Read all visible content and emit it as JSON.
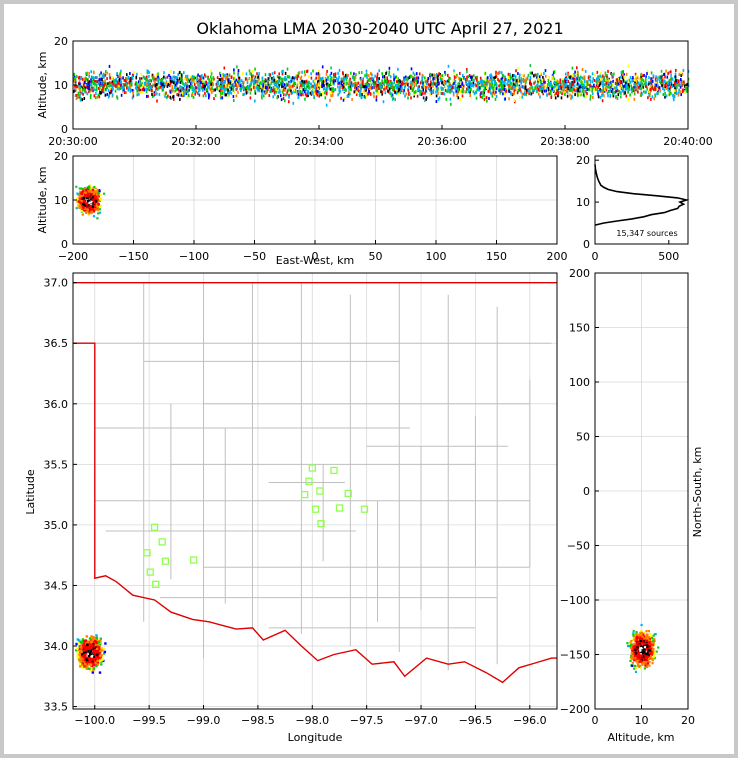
{
  "title": "Oklahoma LMA 2030-2040 UTC April 27, 2021",
  "colors": {
    "source_palette": [
      "#0000ff",
      "#00b0ff",
      "#00d000",
      "#20c040",
      "#ffff00",
      "#ff8000",
      "#ff0000",
      "#ff0000",
      "#ff0000",
      "#000000",
      "#ffffff"
    ],
    "state_border": "#e00000",
    "county_lines": "#c0c0c0",
    "station_marker": "#90ff50"
  },
  "chart_data": [
    {
      "id": "time_altitude",
      "type": "scatter",
      "xlabel": "",
      "ylabel": "Altitude, km",
      "x_ticks": [
        "20:30:00",
        "20:32:00",
        "20:34:00",
        "20:36:00",
        "20:38:00",
        "20:40:00"
      ],
      "y_ticks": [
        "0",
        "10",
        "20"
      ],
      "xlim_minutes": [
        0,
        10
      ],
      "ylim": [
        0,
        20
      ],
      "source_band_km": [
        5,
        16
      ],
      "source_core_km": [
        7,
        13
      ]
    },
    {
      "id": "eastwest_altitude",
      "type": "heatmap",
      "xlabel": "East-West, km",
      "ylabel": "Altitude, km",
      "x_ticks": [
        "−200",
        "−150",
        "−100",
        "−50",
        "0",
        "50",
        "100",
        "150",
        "200"
      ],
      "y_ticks": [
        "0",
        "10",
        "20"
      ],
      "xlim": [
        -200,
        200
      ],
      "ylim": [
        0,
        20
      ],
      "grid": true,
      "source_x_range_km": [
        -200,
        -165
      ],
      "source_alt_range_km": [
        5,
        18
      ]
    },
    {
      "id": "altitude_histogram",
      "type": "line",
      "x_ticks": [
        "0",
        "500"
      ],
      "y_ticks": [
        "0",
        "10",
        "20"
      ],
      "xlim": [
        0,
        630
      ],
      "ylim": [
        0,
        21
      ],
      "annotation": "15,347 sources",
      "profile": [
        {
          "alt": 4.5,
          "count": 0
        },
        {
          "alt": 5.0,
          "count": 60
        },
        {
          "alt": 5.5,
          "count": 150
        },
        {
          "alt": 6.0,
          "count": 250
        },
        {
          "alt": 6.5,
          "count": 330
        },
        {
          "alt": 7.0,
          "count": 380
        },
        {
          "alt": 7.5,
          "count": 470
        },
        {
          "alt": 8.0,
          "count": 510
        },
        {
          "alt": 8.5,
          "count": 560
        },
        {
          "alt": 9.0,
          "count": 570
        },
        {
          "alt": 9.5,
          "count": 600
        },
        {
          "alt": 10.0,
          "count": 575
        },
        {
          "alt": 10.5,
          "count": 620
        },
        {
          "alt": 11.0,
          "count": 560
        },
        {
          "alt": 11.5,
          "count": 420
        },
        {
          "alt": 12.0,
          "count": 260
        },
        {
          "alt": 12.5,
          "count": 150
        },
        {
          "alt": 13.0,
          "count": 90
        },
        {
          "alt": 13.5,
          "count": 60
        },
        {
          "alt": 14.0,
          "count": 40
        },
        {
          "alt": 15.0,
          "count": 25
        },
        {
          "alt": 16.0,
          "count": 15
        },
        {
          "alt": 17.0,
          "count": 8
        },
        {
          "alt": 18.0,
          "count": 3
        },
        {
          "alt": 19.0,
          "count": 0
        }
      ]
    },
    {
      "id": "plan_view_map",
      "type": "scatter",
      "xlabel": "Longitude",
      "ylabel": "Latitude",
      "x_ticks": [
        "−100.0",
        "−99.5",
        "−99.0",
        "−98.5",
        "−98.0",
        "−97.5",
        "−97.0",
        "−96.5",
        "−96.0"
      ],
      "y_ticks": [
        "33.5",
        "34.0",
        "34.5",
        "35.0",
        "35.5",
        "36.0",
        "36.5",
        "37.0"
      ],
      "xlim": [
        -100.2,
        -95.75
      ],
      "ylim": [
        33.48,
        37.08
      ],
      "grid": true,
      "source_lon_range": [
        -100.2,
        -99.75
      ],
      "source_lat_range": [
        33.72,
        34.22
      ],
      "stations": [
        {
          "lon": -98.0,
          "lat": 35.47
        },
        {
          "lon": -97.8,
          "lat": 35.45
        },
        {
          "lon": -98.03,
          "lat": 35.36
        },
        {
          "lon": -97.93,
          "lat": 35.28
        },
        {
          "lon": -98.07,
          "lat": 35.25
        },
        {
          "lon": -97.67,
          "lat": 35.26
        },
        {
          "lon": -97.97,
          "lat": 35.13
        },
        {
          "lon": -97.75,
          "lat": 35.14
        },
        {
          "lon": -97.52,
          "lat": 35.13
        },
        {
          "lon": -97.92,
          "lat": 35.01
        },
        {
          "lon": -99.45,
          "lat": 34.98
        },
        {
          "lon": -99.38,
          "lat": 34.86
        },
        {
          "lon": -99.52,
          "lat": 34.77
        },
        {
          "lon": -99.35,
          "lat": 34.7
        },
        {
          "lon": -99.09,
          "lat": 34.71
        },
        {
          "lon": -99.49,
          "lat": 34.61
        },
        {
          "lon": -99.44,
          "lat": 34.51
        }
      ]
    },
    {
      "id": "altitude_northsouth",
      "type": "heatmap",
      "xlabel": "Altitude, km",
      "ylabel": "North-South, km",
      "x_ticks": [
        "0",
        "10",
        "20"
      ],
      "y_ticks": [
        "−200",
        "−150",
        "−100",
        "−50",
        "0",
        "50",
        "100",
        "150",
        "200"
      ],
      "xlim": [
        0,
        20
      ],
      "ylim": [
        -200,
        200
      ],
      "grid": true,
      "source_alt_range_km": [
        4.5,
        19
      ],
      "source_ns_range_km": [
        -172,
        -110
      ]
    }
  ]
}
